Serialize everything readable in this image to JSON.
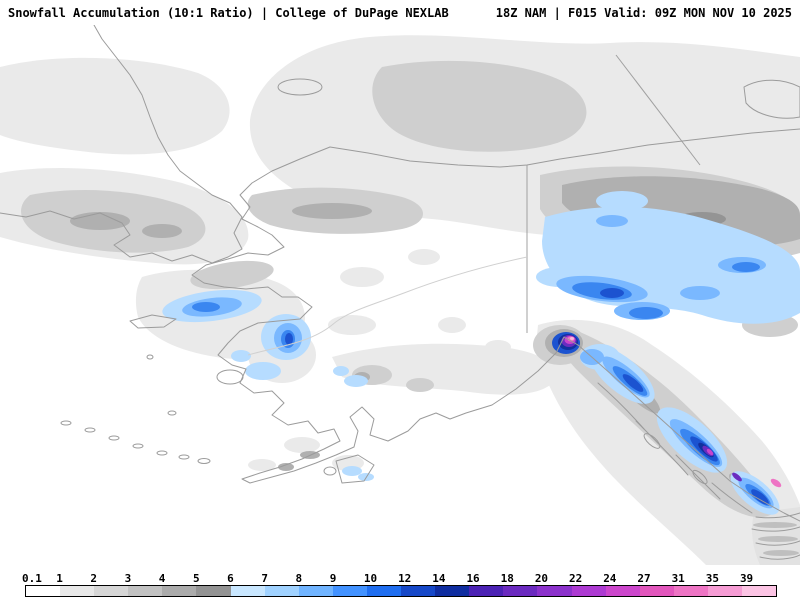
{
  "header": {
    "left": "Snowfall Accumulation (10:1 Ratio) | College of DuPage NEXLAB",
    "right": "18Z NAM | F015 Valid: 09Z MON NOV 10 2025"
  },
  "legend": {
    "cells": [
      {
        "label": "0.1",
        "color": "#ffffff"
      },
      {
        "label": "1",
        "color": "#e8e8e8"
      },
      {
        "label": "2",
        "color": "#d6d6d6"
      },
      {
        "label": "3",
        "color": "#c2c2c2"
      },
      {
        "label": "4",
        "color": "#ababab"
      },
      {
        "label": "5",
        "color": "#939393"
      },
      {
        "label": "6",
        "color": "#c9e7ff"
      },
      {
        "label": "7",
        "color": "#a0d2ff"
      },
      {
        "label": "8",
        "color": "#70b4ff"
      },
      {
        "label": "9",
        "color": "#4292ff"
      },
      {
        "label": "10",
        "color": "#1f6ef0"
      },
      {
        "label": "12",
        "color": "#1648c8"
      },
      {
        "label": "14",
        "color": "#0f2da0"
      },
      {
        "label": "16",
        "color": "#4b22b4"
      },
      {
        "label": "18",
        "color": "#6b2ac0"
      },
      {
        "label": "20",
        "color": "#8c32cc"
      },
      {
        "label": "22",
        "color": "#ad3ad2"
      },
      {
        "label": "24",
        "color": "#cc46cc"
      },
      {
        "label": "27",
        "color": "#e256bc"
      },
      {
        "label": "31",
        "color": "#ee74c4"
      },
      {
        "label": "35",
        "color": "#f69cd4"
      },
      {
        "label": "39",
        "color": "#fcc4e4"
      }
    ]
  },
  "map": {
    "ocean_color": "#ffffff",
    "coastline_color": "#9b9b9b",
    "border_color": "#a0a0a0"
  }
}
